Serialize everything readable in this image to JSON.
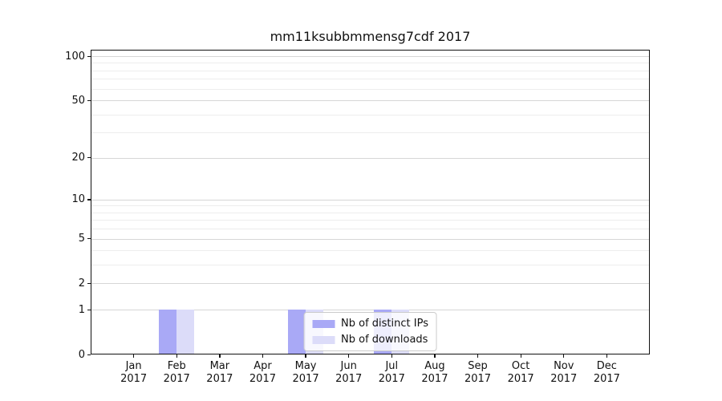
{
  "title": "mm11ksubbmmensg7cdf 2017",
  "chart_data": {
    "type": "bar",
    "title": "mm11ksubbmmensg7cdf 2017",
    "categories": [
      "Jan",
      "Feb",
      "Mar",
      "Apr",
      "May",
      "Jun",
      "Jul",
      "Aug",
      "Sep",
      "Oct",
      "Nov",
      "Dec"
    ],
    "category_year": "2017",
    "series": [
      {
        "name": "Nb of distinct IPs",
        "color": "#a9a9f6",
        "values": [
          0,
          1,
          0,
          0,
          1,
          0,
          1,
          0,
          0,
          0,
          0,
          0
        ]
      },
      {
        "name": "Nb of downloads",
        "color": "#dcdcf9",
        "values": [
          0,
          1,
          0,
          0,
          1,
          0,
          1,
          0,
          0,
          0,
          0,
          0
        ]
      }
    ],
    "y_axis": {
      "scale": "log1p",
      "major_ticks": [
        0,
        1,
        2,
        5,
        10,
        20,
        50,
        100
      ],
      "minor_gridlines": [
        3,
        4,
        6,
        7,
        8,
        9,
        30,
        40,
        60,
        70,
        80,
        90
      ],
      "ylim": [
        0,
        111
      ]
    },
    "legend": {
      "position": "lower center",
      "entries": [
        "Nb of distinct IPs",
        "Nb of downloads"
      ]
    },
    "grid": true,
    "colors": {
      "major_gridline": "#d6d6d6",
      "minor_gridline": "#ededed",
      "spine": "#111111"
    }
  }
}
